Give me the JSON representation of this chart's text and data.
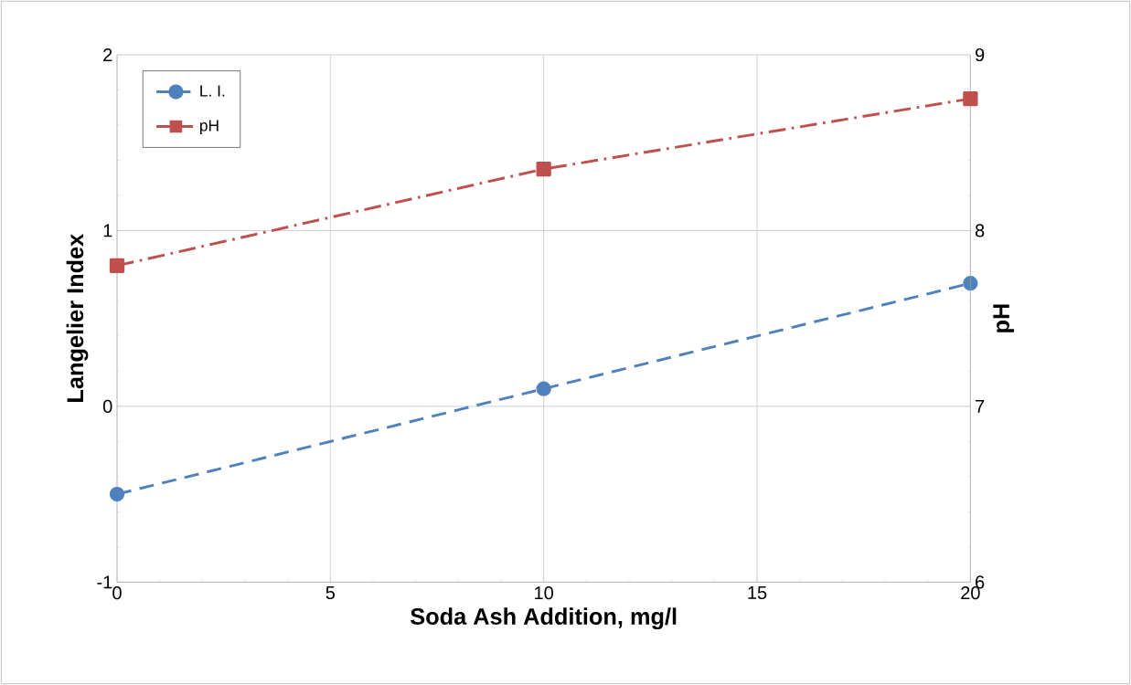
{
  "chart_data": {
    "type": "line",
    "xlabel": "Soda Ash Addition, mg/l",
    "ylabel": "Langelier Index",
    "y2label": "pH",
    "x": [
      0,
      10,
      20
    ],
    "series": [
      {
        "name": "L. I.",
        "color": "#4f81bd",
        "values": [
          -0.5,
          0.1,
          0.7
        ],
        "marker": "circle",
        "line_style": "dashed"
      },
      {
        "name": "pH",
        "color": "#c0504d",
        "values": [
          7.8,
          8.35,
          8.75
        ],
        "marker": "square",
        "line_style": "dashdot",
        "axis": "y2"
      }
    ],
    "xlim": [
      0,
      20
    ],
    "xticks": [
      0,
      5,
      10,
      15,
      20
    ],
    "ylim": [
      -1,
      2
    ],
    "yticks": [
      -1,
      0,
      1,
      2
    ],
    "y2lim": [
      6,
      9
    ],
    "y2ticks": [
      6,
      7,
      8,
      9
    ],
    "grid": true,
    "legend": "top left"
  }
}
